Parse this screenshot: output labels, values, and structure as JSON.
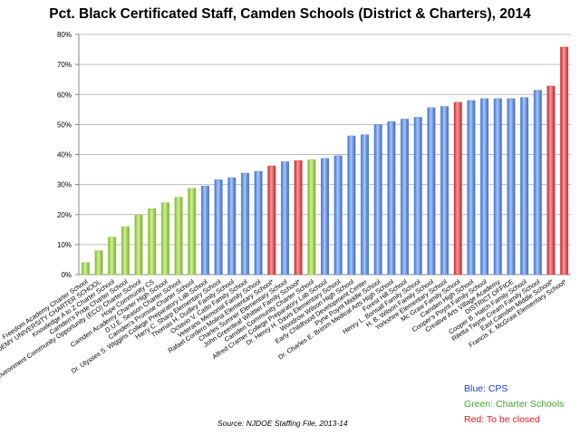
{
  "chart_data": {
    "type": "bar",
    "title": "Pct. Black Certificated Staff, Camden Schools (District & Charters), 2014",
    "xlabel": "",
    "ylabel": "",
    "ylim": [
      0,
      0.8
    ],
    "yticks": [
      "0%",
      "10%",
      "20%",
      "30%",
      "40%",
      "50%",
      "60%",
      "70%",
      "80%"
    ],
    "grid": true,
    "colors": {
      "CPS": "#5b8ee8",
      "Charter": "#9fd34a",
      "Closed": "#e0484f"
    },
    "categories": [
      "Freedom Academy Charter School",
      "KIPP ACADEMY UNIVERSITY CHARTER SCHOOL",
      "Knowledge A to Z Charter School",
      "Camden's Pride Charter School",
      "Environment Community Opportunity (ECO) Charter School",
      "Hope Community CS",
      "Camden Academy Charter High School",
      "D.U.E. Season Charter School",
      "Camden's Promise Charter School",
      "Dr. Ulysses S. Wiggins College Preparatory Lab School",
      "Harry C. Sharp Elementary School",
      "Thomas H. Dudley Family School",
      "Octavio V. Catto Family School",
      "Veterans Memorial Family School",
      "Rafael Cordero Molina Elementary School*",
      "Charles Sumner Elementary School",
      "John Greenleaf Whittier Family School*",
      "Camden Community Charter School",
      "Alfred Cramer College Preparatory Lab School",
      "Dr. Henry H. Davis Elementary School",
      "Woodrow Wilson High School",
      "Early Childhood Development Center",
      "Pyne Poynt Middle School",
      "Dr. Charles E. Brimm Medical Arts High School",
      "Forest Hill School",
      "Henry L. Bonsall Family School",
      "H. B. Wilson Family School",
      "Yorkshire Elementary School",
      "Mc Graw Family School",
      "Camden High School",
      "Cooper's Poynt Family School",
      "Creative Arts Village Academy",
      "DISTRICT OFFICE",
      "Cooper B. Hatch Family School",
      "Riletta Twyne Cream Family School",
      "East Camden Middle School*",
      "Francis X. McGraw Elementary School*"
    ],
    "values": [
      0.04,
      0.08,
      0.125,
      0.16,
      0.198,
      0.22,
      0.24,
      0.258,
      0.288,
      0.295,
      0.316,
      0.323,
      0.338,
      0.344,
      0.362,
      0.376,
      0.38,
      0.383,
      0.387,
      0.396,
      0.462,
      0.466,
      0.5,
      0.51,
      0.518,
      0.524,
      0.556,
      0.56,
      0.574,
      0.58,
      0.586,
      0.586,
      0.586,
      0.59,
      0.614,
      0.628,
      0.758
    ],
    "groups": [
      "Charter",
      "Charter",
      "Charter",
      "Charter",
      "Charter",
      "Charter",
      "Charter",
      "Charter",
      "Charter",
      "CPS",
      "CPS",
      "CPS",
      "CPS",
      "CPS",
      "Closed",
      "CPS",
      "Closed",
      "Charter",
      "CPS",
      "CPS",
      "CPS",
      "CPS",
      "CPS",
      "CPS",
      "CPS",
      "CPS",
      "CPS",
      "CPS",
      "Closed",
      "CPS",
      "CPS",
      "CPS",
      "CPS",
      "CPS",
      "CPS",
      "Closed",
      "Closed"
    ],
    "legend": [
      {
        "label": "Blue: CPS",
        "color": "#1a3fd6"
      },
      {
        "label": "Green: Charter Schools",
        "color": "#44a52a"
      },
      {
        "label": "Red: To be closed",
        "color": "#e02020"
      }
    ],
    "annotations": [
      "Source: NJDOE Staffing File, 2013-14"
    ],
    "legend_position": "bottom-right"
  }
}
